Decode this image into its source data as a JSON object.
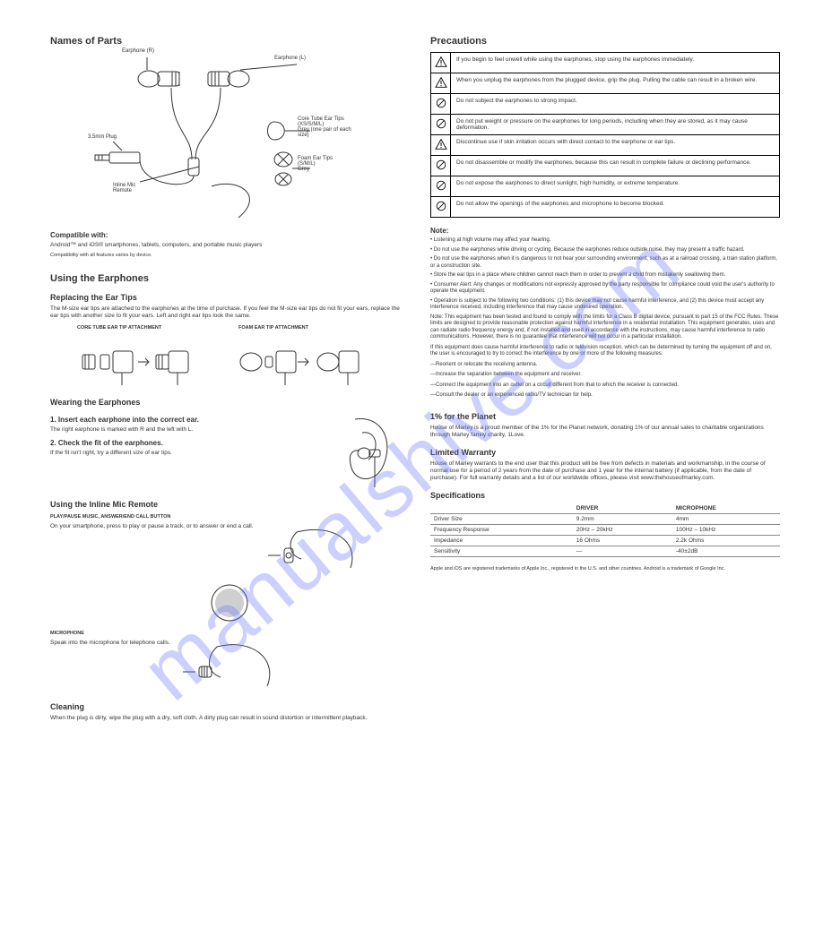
{
  "watermark": "manualshive.com",
  "left": {
    "title_parts": "Names of Parts",
    "hero_labels": {
      "earphone_r": "Earphone (R)",
      "earphone_l": "Earphone (L)",
      "coretube": "Core Tube Ear Tips",
      "coretubes_sizes": "(XS/S/M/L)",
      "grey_pair": "Grey (one pair of each size)",
      "foam": "Foam Ear Tips",
      "foam_sizes": "(S/M/L)",
      "foam_grey": "Grey",
      "plug": "3.5mm Plug",
      "mic": "Inline Mic\nRemote"
    },
    "compat_h": "Compatible with:",
    "compat_1": "Android™ and iOS® smartphones, tablets, computers, and portable music players",
    "compat_note": "Compatibility with all features varies by device.",
    "using_h": "Using the Earphones",
    "replace_h": "Replacing the Ear Tips",
    "replace_p": "The M-size ear tips are attached to the earphones at the time of purchase. If you feel the M-size ear tips do not fit your ears, replace the ear tips with another size to fit your ears. Left and right ear tips look the same.",
    "core_h": "CORE TUBE EAR TIP ATTACHMENT",
    "foam_h": "FOAM EAR TIP ATTACHMENT",
    "wearing_h": "Wearing the Earphones",
    "wearing_1_h": "1. Insert each earphone into the correct ear.",
    "wearing_1_p": "The right earphone is marked with R and the left with L.",
    "wearing_2_h": "2. Check the fit of the earphones.",
    "wearing_2_p": "If the fit isn't right, try a different size of ear tips.",
    "remote_h": "Using the Inline Mic Remote",
    "play_h": "PLAY/PAUSE MUSIC, ANSWER/END CALL BUTTON",
    "play_p": "On your smartphone, press to play or pause a track, or to answer or end a call.",
    "mic_h": "MICROPHONE",
    "mic_p": "Speak into the microphone for telephone calls.",
    "clean_h": "Cleaning",
    "clean_p": "When the plug is dirty, wipe the plug with a dry, soft cloth. A dirty plug can result in sound distortion or intermittent playback."
  },
  "right": {
    "prec_h": "Precautions",
    "prec_rows": [
      {
        "icon": "tri",
        "text": "If you begin to feel unwell while using the earphones, stop using the earphones immediately."
      },
      {
        "icon": "tri",
        "text": "When you unplug the earphones from the plugged device, grip the plug. Pulling the cable can result in a broken wire."
      },
      {
        "icon": "circ",
        "text": "Do not subject the earphones to strong impact."
      },
      {
        "icon": "circ",
        "text": "Do not put weight or pressure on the earphones for long periods, including when they are stored, as it may cause deformation."
      },
      {
        "icon": "tri",
        "text": "Discontinue use if skin irritation occurs with direct contact to the earphone or ear tips."
      },
      {
        "icon": "circ",
        "text": "Do not disassemble or modify the earphones, because this can result in complete failure or declining performance."
      },
      {
        "icon": "circ",
        "text": "Do not expose the earphones to direct sunlight, high humidity, or extreme temperature."
      },
      {
        "icon": "circ",
        "text": "Do not allow the openings of the earphones and microphone to become blocked."
      }
    ],
    "note_h": "Note:",
    "notes": [
      "Listening at high volume may affect your hearing.",
      "Do not use the earphones while driving or cycling. Because the earphones reduce outside noise, they may present a traffic hazard.",
      "Do not use the earphones when it is dangerous to not hear your surrounding environment, such as at a railroad crossing, a train station platform, or a construction site.",
      "Store the ear tips in a place where children cannot reach them in order to prevent a child from mistakenly swallowing them.",
      "Consumer Alert: Any changes or modifications not expressly approved by the party responsible for compliance could void the user's authority to operate the equipment.",
      "Operation is subject to the following two conditions: (1) this device may not cause harmful interference, and (2) this device must accept any interference received, including interference that may cause undesired operation."
    ],
    "fcc_p1": "Note: This equipment has been tested and found to comply with the limits for a Class B digital device, pursuant to part 15 of the FCC Rules. These limits are designed to provide reasonable protection against harmful interference in a residential installation. This equipment generates, uses and can radiate radio frequency energy and, if not installed and used in accordance with the instructions, may cause harmful interference to radio communications. However, there is no guarantee that interference will not occur in a particular installation.",
    "fcc_p2": "If this equipment does cause harmful interference to radio or television reception, which can be determined by turning the equipment off and on, the user is encouraged to try to correct the interference by one or more of the following measures:",
    "fcc_list": [
      "—Reorient or relocate the receiving antenna.",
      "—Increase the separation between the equipment and receiver.",
      "—Connect the equipment into an outlet on a circuit different from that to which the receiver is connected.",
      "—Consult the dealer or an experienced radio/TV technician for help."
    ],
    "onepct_h": "1% for the Planet",
    "onepct_p": "House of Marley is a proud member of the 1% for the Planet network, donating 1% of our annual sales to charitable organizations through Marley family charity, 1Love.",
    "warranty_h": "Limited Warranty",
    "warranty_p": "House of Marley warrants to the end user that this product will be free from defects in materials and workmanship, in the course of normal use for a period of 2 years from the date of purchase and 1 year for the internal battery (if applicable, from the date of purchase). For full warranty details and a list of our worldwide offices, please visit www.thehouseofmarley.com.",
    "spec_h": "Specifications",
    "spec_cols": [
      "",
      "DRIVER",
      "MICROPHONE"
    ],
    "spec_rows": [
      [
        "Driver Size",
        "9.2mm",
        "4mm"
      ],
      [
        "Frequency Response",
        "20Hz – 20kHz",
        "100Hz – 10kHz"
      ],
      [
        "Impedance",
        "16 Ohms",
        "2.2k Ohms"
      ],
      [
        "Sensitivity",
        "—",
        "-40±2dB"
      ]
    ],
    "trademark_p": "Apple and iOS are registered trademarks of Apple Inc., registered in the U.S. and other countries. Android is a trademark of Google Inc."
  },
  "colors": {
    "stroke": "#333333",
    "wm": "rgba(110,120,255,0.35)"
  }
}
